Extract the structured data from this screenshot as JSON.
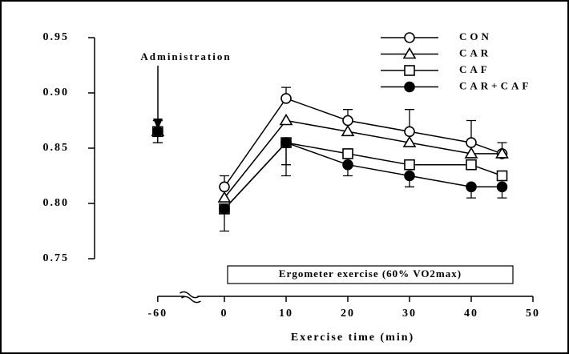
{
  "chart_data": {
    "type": "line",
    "x_label": "Exercise time (min)",
    "x": [
      -60,
      0,
      10,
      20,
      30,
      40,
      45
    ],
    "xticks": [
      -60,
      0,
      10,
      20,
      30,
      40,
      50
    ],
    "xlim": [
      -60,
      50
    ],
    "x_break": true,
    "ylim": [
      0.75,
      0.95
    ],
    "yticks": [
      {
        "value": 0.75,
        "label": "0.75"
      },
      {
        "value": 0.8,
        "label": "0.80"
      },
      {
        "value": 0.85,
        "label": "0.85"
      },
      {
        "value": 0.9,
        "label": "0.90"
      },
      {
        "value": 0.95,
        "label": "0.95"
      }
    ],
    "annotations": [
      "Administration",
      "Ergometer exercise (60% VO2max)"
    ],
    "legend_position": "upper right",
    "series": [
      {
        "name": "CON",
        "marker": "circle",
        "color": "#000",
        "values": [
          0.865,
          0.815,
          0.895,
          0.875,
          0.865,
          0.855,
          0.845
        ],
        "errors": [
          0.01,
          0.01,
          0.01,
          0.01,
          0.02,
          0.02,
          0.01
        ],
        "error_direction": "up"
      },
      {
        "name": "CAR",
        "marker": "triangle",
        "color": "#000",
        "values": [
          0.865,
          0.805,
          0.875,
          0.865,
          0.855,
          0.845,
          0.845
        ]
      },
      {
        "name": "CAF",
        "marker": "square",
        "color": "#000",
        "values": [
          0.865,
          0.795,
          0.855,
          0.845,
          0.835,
          0.835,
          0.825
        ],
        "errors": [
          0.01,
          0.02,
          0.02,
          null,
          null,
          null,
          null
        ],
        "error_direction": "down"
      },
      {
        "name": "CAR+CAF",
        "marker": "filled-circle",
        "color": "#000",
        "values": [
          0.865,
          0.795,
          0.855,
          0.835,
          0.825,
          0.815,
          0.815
        ],
        "errors": [
          null,
          null,
          0.03,
          0.01,
          0.01,
          0.01,
          0.01
        ],
        "error_direction": "down"
      }
    ]
  }
}
